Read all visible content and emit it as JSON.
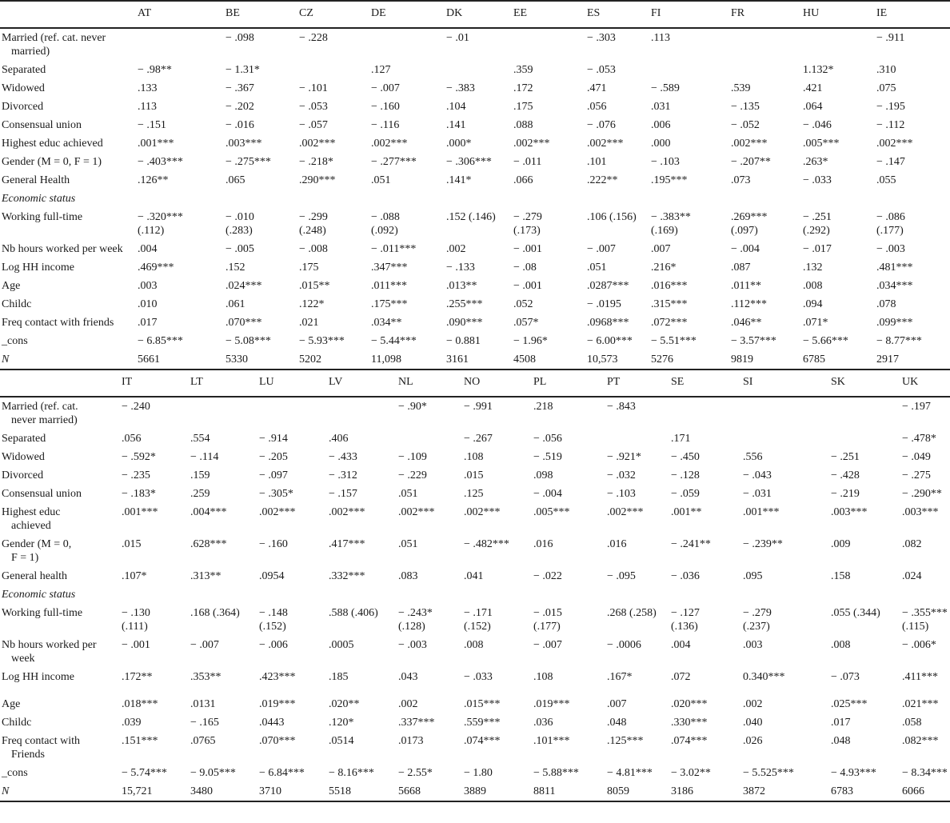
{
  "panel1": {
    "columns": [
      "",
      "AT",
      "BE",
      "CZ",
      "DE",
      "DK",
      "EE",
      "ES",
      "FI",
      "FR",
      "HU",
      "IE"
    ],
    "rows": [
      {
        "label": "Married (ref. cat. never",
        "label2": "married)",
        "values": [
          "",
          "− .098",
          "− .228",
          "",
          "− .01",
          "",
          "− .303",
          ".113",
          "",
          "",
          "− .911"
        ]
      },
      {
        "label": "Separated",
        "values": [
          "− .98**",
          "− 1.31*",
          "",
          ".127",
          "",
          ".359",
          "− .053",
          "",
          "",
          "1.132*",
          ".310"
        ]
      },
      {
        "label": "Widowed",
        "values": [
          ".133",
          "− .367",
          "− .101",
          "− .007",
          "− .383",
          ".172",
          ".471",
          "− .589",
          ".539",
          ".421",
          ".075"
        ]
      },
      {
        "label": "Divorced",
        "values": [
          ".113",
          "− .202",
          "− .053",
          "− .160",
          ".104",
          ".175",
          ".056",
          ".031",
          "− .135",
          ".064",
          "− .195"
        ]
      },
      {
        "label": "Consensual union",
        "values": [
          "− .151",
          "− .016",
          "− .057",
          "− .116",
          ".141",
          ".088",
          "− .076",
          ".006",
          "− .052",
          "− .046",
          "− .112"
        ]
      },
      {
        "label": "Highest educ achieved",
        "values": [
          ".001***",
          ".003***",
          ".002***",
          ".002***",
          ".000*",
          ".002***",
          ".002***",
          ".000",
          ".002***",
          ".005***",
          ".002***"
        ]
      },
      {
        "label": "Gender (M = 0, F = 1)",
        "values": [
          "− .403***",
          "− .275***",
          "− .218*",
          "− .277***",
          "− .306***",
          "− .011",
          ".101",
          "− .103",
          "− .207**",
          ".263*",
          "− .147"
        ]
      },
      {
        "label": "General Health",
        "values": [
          ".126**",
          ".065",
          ".290***",
          ".051",
          ".141*",
          ".066",
          ".222**",
          ".195***",
          ".073",
          "− .033",
          ".055"
        ]
      },
      {
        "label": "Economic status",
        "section": true,
        "values": []
      },
      {
        "label": "Working full-time",
        "values": [
          "− .320***\n(.112)",
          "− .010\n(.283)",
          "− .299\n(.248)",
          "− .088\n(.092)",
          ".152 (.146)",
          "− .279\n(.173)",
          ".106 (.156)",
          "− .383**\n(.169)",
          ".269***\n(.097)",
          "− .251\n(.292)",
          "− .086\n(.177)"
        ]
      },
      {
        "label": "Nb hours worked per week",
        "values": [
          ".004",
          "− .005",
          "− .008",
          "− .011***",
          ".002",
          "− .001",
          "− .007",
          ".007",
          "− .004",
          "− .017",
          "− .003"
        ]
      },
      {
        "label": "Log HH income",
        "values": [
          ".469***",
          ".152",
          ".175",
          ".347***",
          "− .133",
          "− .08",
          ".051",
          ".216*",
          ".087",
          ".132",
          ".481***"
        ]
      },
      {
        "label": "Age",
        "values": [
          ".003",
          ".024***",
          ".015**",
          ".011***",
          ".013**",
          "− .001",
          ".0287***",
          ".016***",
          ".011**",
          ".008",
          ".034***"
        ]
      },
      {
        "label": "Childc",
        "values": [
          ".010",
          ".061",
          ".122*",
          ".175***",
          ".255***",
          ".052",
          "− .0195",
          ".315***",
          ".112***",
          ".094",
          ".078"
        ]
      },
      {
        "label": "Freq contact with friends",
        "values": [
          ".017",
          ".070***",
          ".021",
          ".034**",
          ".090***",
          ".057*",
          ".0968***",
          ".072***",
          ".046**",
          ".071*",
          ".099***"
        ]
      },
      {
        "label": "_cons",
        "values": [
          "− 6.85***",
          "− 5.08***",
          "− 5.93***",
          "− 5.44***",
          "− 0.881",
          "− 1.96*",
          "− 6.00***",
          "− 5.51***",
          "− 3.57***",
          "− 5.66***",
          "− 8.77***"
        ]
      },
      {
        "label": "N",
        "italic": true,
        "values": [
          "5661",
          "5330",
          "5202",
          "11,098",
          "3161",
          "4508",
          "10,573",
          "5276",
          "9819",
          "6785",
          "2917"
        ]
      }
    ]
  },
  "panel2": {
    "columns": [
      "",
      "IT",
      "LT",
      "LU",
      "LV",
      "NL",
      "NO",
      "PL",
      "PT",
      "SE",
      "SI",
      "SK",
      "UK"
    ],
    "rows": [
      {
        "label": "Married (ref. cat.",
        "label2": "never married)",
        "values": [
          "− .240",
          "",
          "",
          "",
          "− .90*",
          "− .991",
          ".218",
          "− .843",
          "",
          "",
          "",
          "− .197"
        ]
      },
      {
        "label": "Separated",
        "values": [
          ".056",
          ".554",
          "− .914",
          ".406",
          "",
          "− .267",
          "− .056",
          "",
          ".171",
          "",
          "",
          "− .478*"
        ]
      },
      {
        "label": "Widowed",
        "values": [
          "− .592*",
          "− .114",
          "− .205",
          "− .433",
          "− .109",
          ".108",
          "− .519",
          "− .921*",
          "− .450",
          ".556",
          "− .251",
          "− .049"
        ]
      },
      {
        "label": "Divorced",
        "values": [
          "− .235",
          ".159",
          "− .097",
          "− .312",
          "− .229",
          ".015",
          ".098",
          "− .032",
          "− .128",
          "− .043",
          "− .428",
          "− .275"
        ]
      },
      {
        "label": "Consensual union",
        "values": [
          "− .183*",
          ".259",
          "− .305*",
          "− .157",
          ".051",
          ".125",
          "− .004",
          "− .103",
          "− .059",
          "− .031",
          "− .219",
          "− .290**"
        ]
      },
      {
        "label": "Highest educ",
        "label2": "achieved",
        "values": [
          ".001***",
          ".004***",
          ".002***",
          ".002***",
          ".002***",
          ".002***",
          ".005***",
          ".002***",
          ".001**",
          ".001***",
          ".003***",
          ".003***"
        ]
      },
      {
        "label": "Gender (M = 0,",
        "label2": "F = 1)",
        "values": [
          ".015",
          ".628***",
          "− .160",
          ".417***",
          ".051",
          "− .482***",
          ".016",
          ".016",
          "− .241**",
          "− .239**",
          ".009",
          ".082"
        ]
      },
      {
        "label": "General health",
        "values": [
          ".107*",
          ".313**",
          ".0954",
          ".332***",
          ".083",
          ".041",
          "− .022",
          "− .095",
          "− .036",
          ".095",
          ".158",
          ".024"
        ]
      },
      {
        "label": "Economic status",
        "section": true,
        "values": []
      },
      {
        "label": "Working full-time",
        "values": [
          "− .130\n(.111)",
          ".168 (.364)",
          "− .148\n(.152)",
          ".588 (.406)",
          "− .243*\n(.128)",
          "− .171\n(.152)",
          "− .015\n(.177)",
          ".268 (.258)",
          "− .127\n(.136)",
          "− .279\n(.237)",
          ".055 (.344)",
          "− .355***\n(.115)"
        ]
      },
      {
        "label": "Nb hours worked per",
        "label2": "week",
        "values": [
          "− .001",
          "− .007",
          "− .006",
          ".0005",
          "− .003",
          ".008",
          "− .007",
          "− .0006",
          ".004",
          ".003",
          ".008",
          "− .006*"
        ]
      },
      {
        "label": "Log HH income",
        "values": [
          ".172**",
          ".353**",
          ".423***",
          ".185",
          ".043",
          "− .033",
          ".108",
          ".167*",
          ".072",
          "0.340***",
          "− .073",
          ".411***"
        ],
        "extra_space": true
      },
      {
        "label": "Age",
        "values": [
          ".018***",
          ".0131",
          ".019***",
          ".020**",
          ".002",
          ".015***",
          ".019***",
          ".007",
          ".020***",
          ".002",
          ".025***",
          ".021***"
        ]
      },
      {
        "label": "Childc",
        "values": [
          ".039",
          "− .165",
          ".0443",
          ".120*",
          ".337***",
          ".559***",
          ".036",
          ".048",
          ".330***",
          ".040",
          ".017",
          ".058"
        ]
      },
      {
        "label": "Freq contact with",
        "label2": "Friends",
        "values": [
          ".151***",
          ".0765",
          ".070***",
          ".0514",
          ".0173",
          ".074***",
          ".101***",
          ".125***",
          ".074***",
          ".026",
          ".048",
          ".082***"
        ]
      },
      {
        "label": "_cons",
        "values": [
          "− 5.74***",
          "− 9.05***",
          "− 6.84***",
          "− 8.16***",
          "− 2.55*",
          "− 1.80",
          "− 5.88***",
          "− 4.81***",
          "− 3.02**",
          "− 5.525***",
          "− 4.93***",
          "− 8.34***"
        ]
      },
      {
        "label": "N",
        "italic": true,
        "values": [
          "15,721",
          "3480",
          "3710",
          "5518",
          "5668",
          "3889",
          "8811",
          "8059",
          "3186",
          "3872",
          "6783",
          "6066"
        ]
      }
    ]
  }
}
